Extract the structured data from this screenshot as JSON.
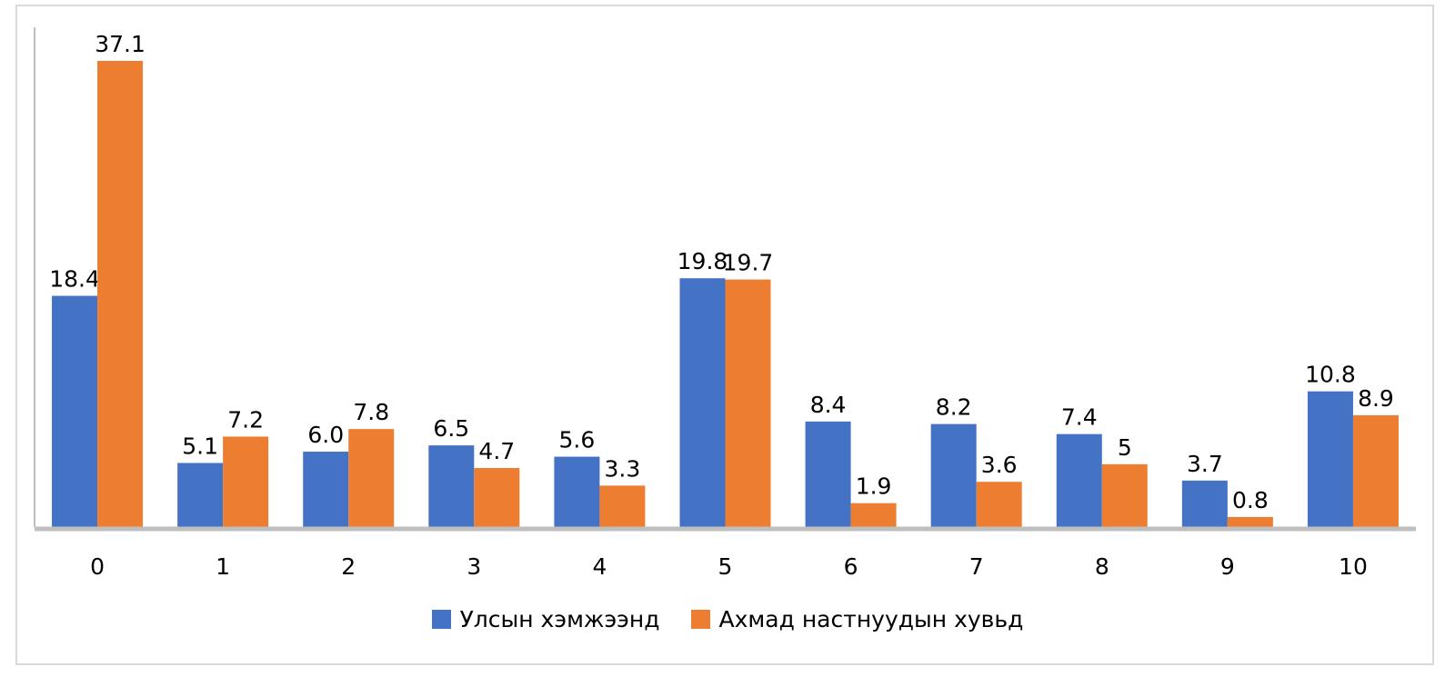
{
  "chart_data": {
    "type": "bar",
    "title": "",
    "xlabel": "",
    "ylabel": "",
    "ylim": [
      0,
      37.1
    ],
    "grid": false,
    "legend_position": "bottom",
    "categories": [
      "0",
      "1",
      "2",
      "3",
      "4",
      "5",
      "6",
      "7",
      "8",
      "9",
      "10"
    ],
    "series": [
      {
        "name": "Улсын хэмжээнд",
        "color": "#4472C4",
        "values": [
          18.4,
          5.1,
          6.0,
          6.5,
          5.6,
          19.8,
          8.4,
          8.2,
          7.4,
          3.7,
          10.8
        ],
        "labels": [
          "18.4",
          "5.1",
          "6.0",
          "6.5",
          "5.6",
          "19.8",
          "8.4",
          "8.2",
          "7.4",
          "3.7",
          "10.8"
        ]
      },
      {
        "name": "Ахмад настнуудын хувьд",
        "color": "#ED7D31",
        "values": [
          37.1,
          7.2,
          7.8,
          4.7,
          3.3,
          19.7,
          1.9,
          3.6,
          5,
          0.8,
          8.9
        ],
        "labels": [
          "37.1",
          "7.2",
          "7.8",
          "4.7",
          "3.3",
          "19.7",
          "1.9",
          "3.6",
          "5",
          "0.8",
          "8.9"
        ]
      }
    ]
  }
}
